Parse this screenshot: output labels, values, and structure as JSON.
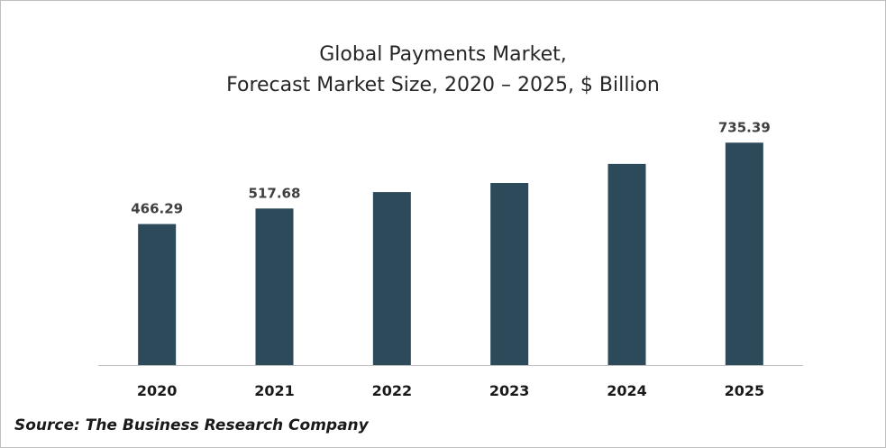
{
  "chart_data": {
    "type": "bar",
    "title_line1": "Global Payments Market,",
    "title_line2": "Forecast Market Size, 2020 – 2025, $ Billion",
    "categories": [
      "2020",
      "2021",
      "2022",
      "2023",
      "2024",
      "2025"
    ],
    "values": [
      466.29,
      517.68,
      572,
      602,
      665,
      735.39
    ],
    "data_labels": [
      "466.29",
      "517.68",
      "",
      "",
      "",
      "735.39"
    ],
    "bar_color": "#2d4a5a",
    "ylim": [
      0,
      760
    ],
    "grid": false,
    "legend": "none",
    "source": "Source: The Business Research Company"
  }
}
